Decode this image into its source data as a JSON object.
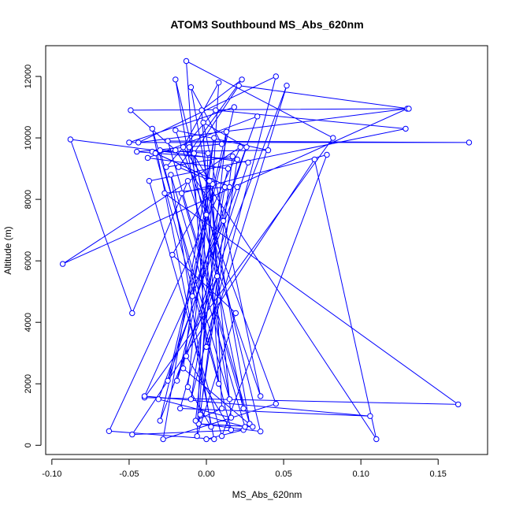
{
  "chart_data": {
    "type": "line",
    "title": "ATOM3 Southbound MS_Abs_620nm",
    "xlabel": "MS_Abs_620nm",
    "ylabel": "Altitude (m)",
    "xlim": [
      -0.104,
      0.182
    ],
    "ylim": [
      -300,
      13000
    ],
    "x_ticks": [
      -0.1,
      -0.05,
      0.0,
      0.05,
      0.1,
      0.15
    ],
    "x_tick_labels": [
      "-0.10",
      "-0.05",
      "0.00",
      "0.05",
      "0.10",
      "0.15"
    ],
    "y_ticks": [
      0,
      2000,
      4000,
      6000,
      8000,
      10000,
      12000
    ],
    "y_tick_labels": [
      "0",
      "2000",
      "4000",
      "6000",
      "8000",
      "10000",
      "12000"
    ],
    "grid": false,
    "series": [
      {
        "color": "#0000ff",
        "marker": "open-circle",
        "points": [
          [
            0.0,
            200
          ],
          [
            0.024,
            500
          ],
          [
            -0.048,
            350
          ],
          [
            0.07,
            9300
          ],
          [
            0.11,
            200
          ],
          [
            -0.015,
            9700
          ],
          [
            0.008,
            11800
          ],
          [
            -0.005,
            700
          ],
          [
            0.035,
            450
          ],
          [
            -0.02,
            11900
          ],
          [
            0.015,
            1500
          ],
          [
            -0.035,
            10300
          ],
          [
            0.005,
            200
          ],
          [
            -0.063,
            460
          ],
          [
            0.022,
            9700
          ],
          [
            -0.093,
            5900
          ],
          [
            0.13,
            10950
          ],
          [
            -0.044,
            9850
          ],
          [
            0.045,
            12000
          ],
          [
            -0.01,
            1500
          ],
          [
            0.012,
            8400
          ],
          [
            -0.027,
            8200
          ],
          [
            0.163,
            1330
          ],
          [
            -0.04,
            1550
          ],
          [
            0.082,
            10000
          ],
          [
            -0.013,
            12500
          ],
          [
            0.0,
            3200
          ],
          [
            0.052,
            11700
          ],
          [
            -0.03,
            800
          ],
          [
            0.018,
            11000
          ],
          [
            -0.05,
            9850
          ],
          [
            0.17,
            9850
          ],
          [
            -0.025,
            9900
          ],
          [
            0.028,
            700
          ],
          [
            -0.01,
            11650
          ],
          [
            0.01,
            9800
          ],
          [
            -0.045,
            9550
          ],
          [
            0.02,
            9300
          ],
          [
            -0.005,
            700
          ],
          [
            0.03,
            600
          ],
          [
            -0.015,
            2500
          ],
          [
            0.005,
            10000
          ],
          [
            -0.028,
            200
          ],
          [
            0.045,
            1350
          ],
          [
            -0.02,
            10250
          ],
          [
            0.04,
            9600
          ],
          [
            -0.035,
            9550
          ],
          [
            0.015,
            8400
          ],
          [
            -0.033,
            9500
          ],
          [
            0.008,
            2000
          ],
          [
            -0.003,
            10900
          ],
          [
            0.023,
            11900
          ],
          [
            -0.018,
            9050
          ],
          [
            0.003,
            8600
          ],
          [
            -0.009,
            4850
          ],
          [
            0.033,
            10700
          ],
          [
            -0.038,
            9350
          ],
          [
            0.014,
            9000
          ],
          [
            -0.019,
            2100
          ],
          [
            0.027,
            9200
          ],
          [
            -0.088,
            9950
          ],
          [
            -0.048,
            4300
          ],
          [
            -0.012,
            8600
          ],
          [
            0.035,
            1600
          ],
          [
            -0.002,
            10500
          ],
          [
            0.026,
            9700
          ],
          [
            -0.025,
            2100
          ],
          [
            0.013,
            10200
          ],
          [
            -0.007,
            800
          ],
          [
            0.01,
            1200
          ],
          [
            0.004,
            8500
          ],
          [
            -0.022,
            6200
          ],
          [
            0.019,
            4300
          ],
          [
            -0.006,
            300
          ],
          [
            0.001,
            9500
          ],
          [
            -0.03,
            9600
          ],
          [
            0.016,
            500
          ],
          [
            -0.013,
            2900
          ],
          [
            0.007,
            5500
          ],
          [
            -0.017,
            1200
          ],
          [
            0.106,
            950
          ],
          [
            -0.04,
            1600
          ],
          [
            0.011,
            7300
          ],
          [
            -0.02,
            9600
          ],
          [
            -0.049,
            10900
          ],
          [
            0.131,
            10950
          ],
          [
            0.021,
            11700
          ],
          [
            -0.008,
            9500
          ],
          [
            0.0,
            7500
          ],
          [
            -0.012,
            1900
          ],
          [
            0.003,
            600
          ],
          [
            -0.023,
            8800
          ],
          [
            0.025,
            600
          ],
          [
            -0.004,
            1000
          ],
          [
            0.017,
            9400
          ],
          [
            -0.026,
            9050
          ],
          [
            0.006,
            10900
          ],
          [
            0.129,
            10300
          ],
          [
            -0.037,
            8600
          ],
          [
            0.01,
            300
          ],
          [
            0.078,
            9450
          ],
          [
            -0.016,
            8200
          ],
          [
            0.024,
            1200
          ],
          [
            -0.011,
            9700
          ],
          [
            0.002,
            8600
          ],
          [
            0.016,
            900
          ],
          [
            -0.031,
            1500
          ],
          [
            0.02,
            8400
          ]
        ]
      }
    ]
  }
}
